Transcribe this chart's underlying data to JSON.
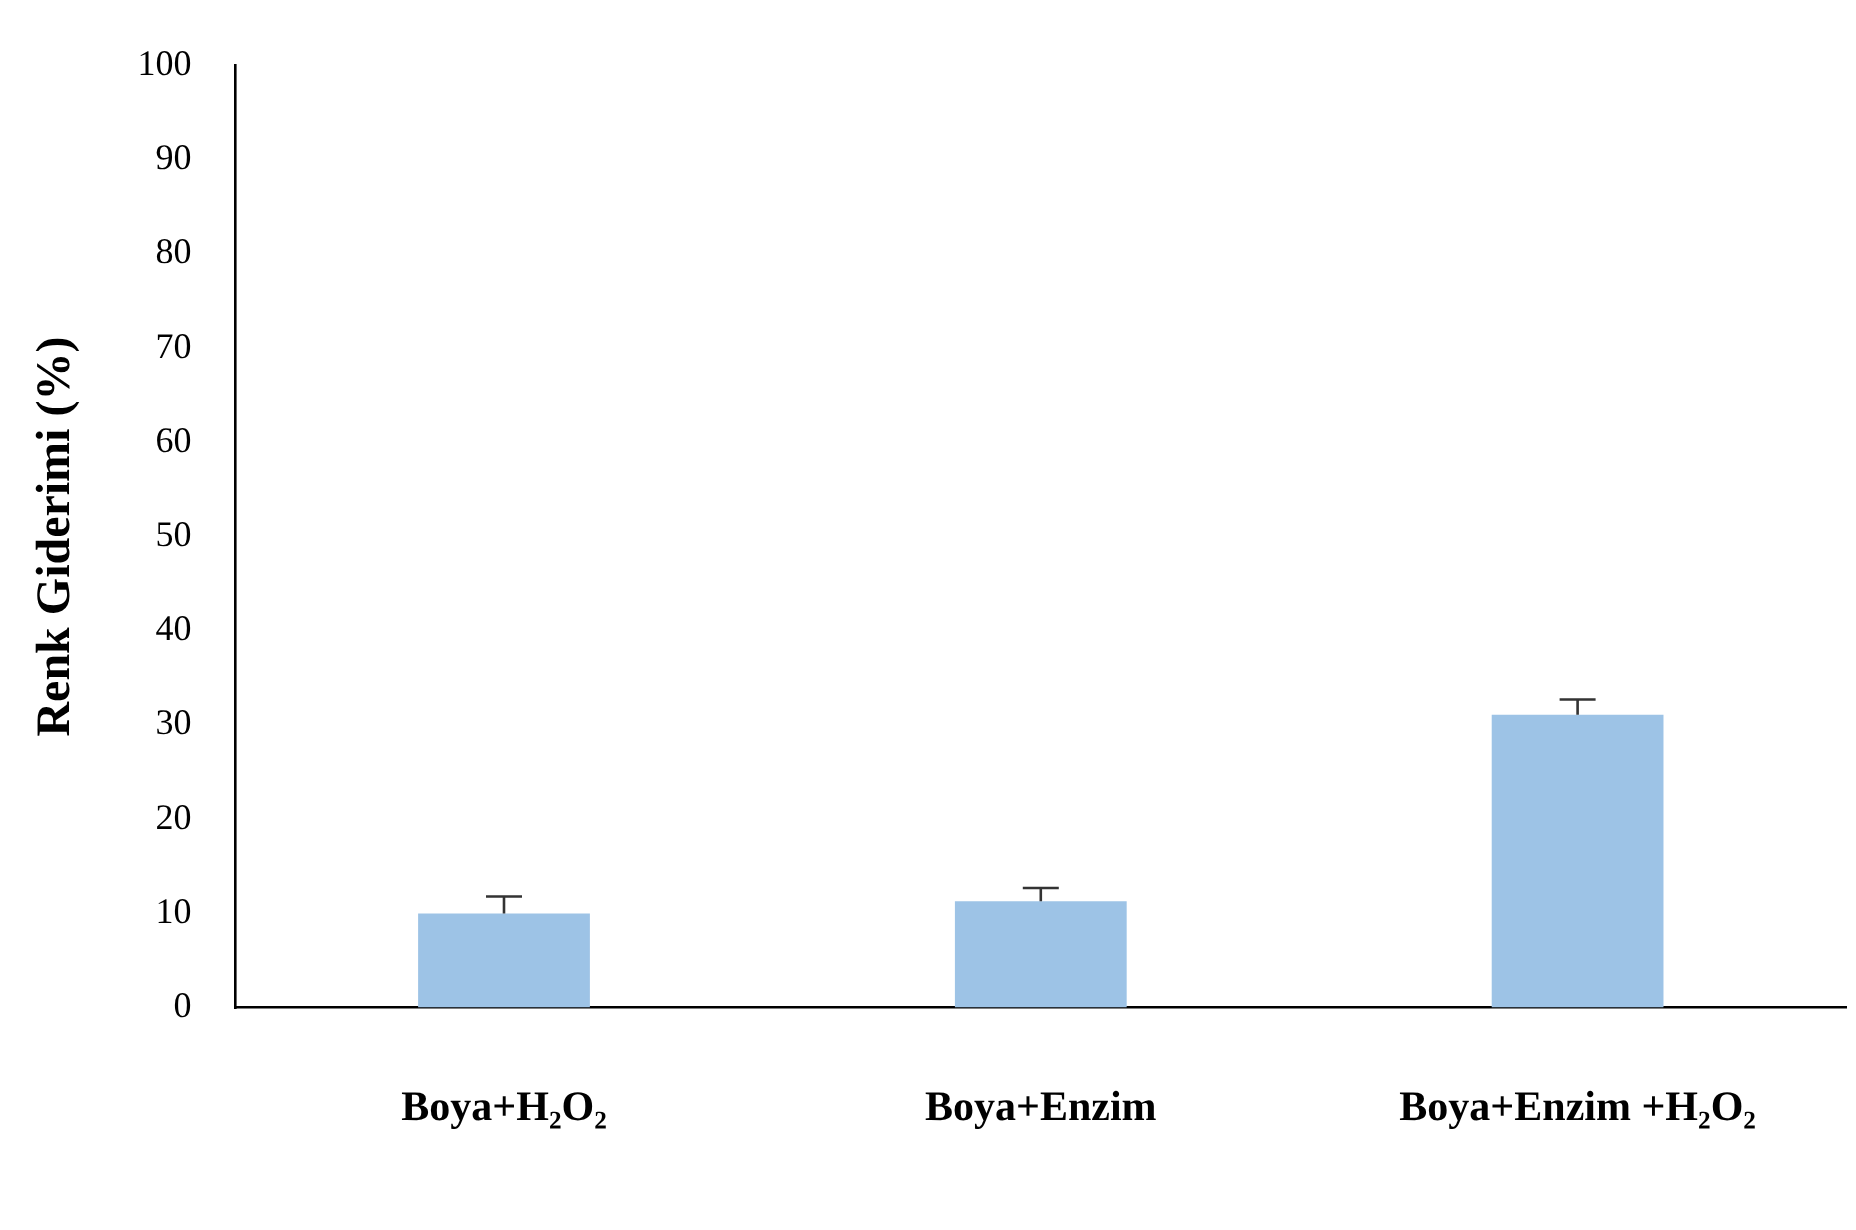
{
  "chart_data": {
    "type": "bar",
    "ylabel": "Renk Giderimi (%)",
    "categories": [
      "Boya+H₂O₂",
      "Boya+Enzim",
      "Boya+Enzim +H₂O₂"
    ],
    "values": [
      10.0,
      11.3,
      31.1
    ],
    "errors": [
      [
        10.0,
        11.8
      ],
      [
        11.3,
        12.7
      ],
      [
        31.1,
        32.7
      ]
    ],
    "color": "#9dc3e6",
    "ylim": [
      0,
      100
    ],
    "yticks": [
      0,
      10,
      20,
      30,
      40,
      50,
      60,
      70,
      80,
      90,
      100
    ],
    "grid": false,
    "legend": false
  }
}
